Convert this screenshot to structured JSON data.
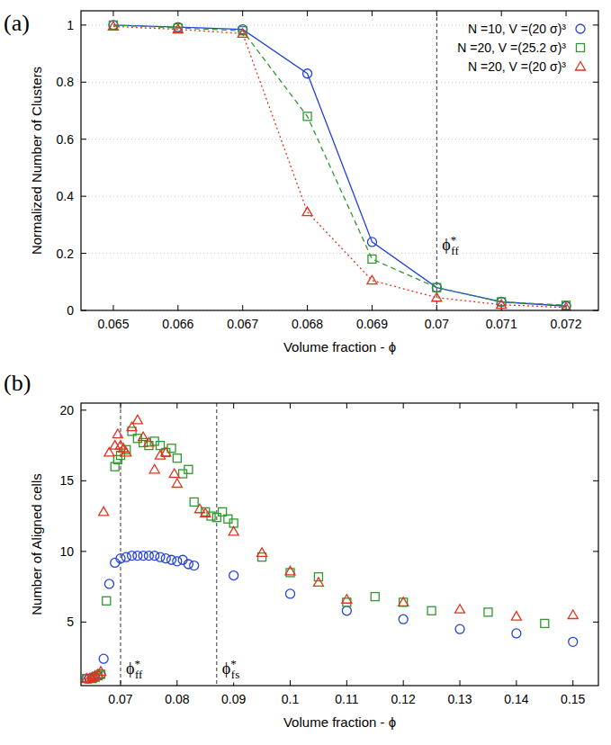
{
  "chart_data": [
    {
      "type": "line",
      "label": "(a)",
      "xlabel": "Volume fraction - ϕ",
      "ylabel": "Normalized Number of Clusters",
      "xlim": [
        0.0645,
        0.0725
      ],
      "xticks": [
        0.065,
        0.066,
        0.067,
        0.068,
        0.069,
        0.07,
        0.071,
        0.072
      ],
      "ylim": [
        0,
        1.05
      ],
      "yticks": [
        0,
        0.2,
        0.4,
        0.6,
        0.8,
        1
      ],
      "grid": true,
      "legend": "top-right",
      "x": [
        0.065,
        0.066,
        0.067,
        0.068,
        0.069,
        0.07,
        0.071,
        0.072
      ],
      "series": [
        {
          "name": "N =10, V =(20 σ)³",
          "color": "#2343d8",
          "marker": "circle",
          "line_style": "solid",
          "values": [
            1.0,
            0.993,
            0.985,
            0.83,
            0.24,
            0.08,
            0.03,
            0.015
          ]
        },
        {
          "name": "N =20, V =(25.2 σ)³",
          "color": "#2e9a2e",
          "marker": "square",
          "line_style": "dashed",
          "values": [
            1.0,
            0.99,
            0.98,
            0.68,
            0.18,
            0.08,
            0.03,
            0.018
          ]
        },
        {
          "name": "N =20, V =(20 σ)³",
          "color": "#e0341e",
          "marker": "triangle",
          "line_style": "dotted",
          "values": [
            0.995,
            0.985,
            0.97,
            0.345,
            0.105,
            0.045,
            0.02,
            0.01
          ]
        }
      ],
      "annotations": [
        {
          "x": 0.07,
          "text": "ϕ",
          "sup": "*",
          "sub": "ff"
        }
      ]
    },
    {
      "type": "scatter",
      "label": "(b)",
      "xlabel": "Volume fraction - ϕ",
      "ylabel": "Number of Aligned cells",
      "xlim": [
        0.063,
        0.1545
      ],
      "xticks": [
        0.07,
        0.08,
        0.09,
        0.1,
        0.11,
        0.12,
        0.13,
        0.14,
        0.15
      ],
      "ylim": [
        0.5,
        20.5
      ],
      "yticks": [
        5,
        10,
        15,
        20
      ],
      "grid": false,
      "series": [
        {
          "color": "#2343d8",
          "marker": "circle",
          "x": [
            0.064,
            0.0645,
            0.065,
            0.0655,
            0.066,
            0.0665,
            0.067,
            0.068,
            0.069,
            0.07,
            0.071,
            0.072,
            0.073,
            0.074,
            0.075,
            0.076,
            0.077,
            0.078,
            0.079,
            0.08,
            0.081,
            0.082,
            0.083,
            0.09,
            0.1,
            0.11,
            0.12,
            0.13,
            0.14,
            0.15
          ],
          "values": [
            1.0,
            1.0,
            1.05,
            1.1,
            1.2,
            1.3,
            2.4,
            7.7,
            9.2,
            9.5,
            9.6,
            9.7,
            9.7,
            9.7,
            9.7,
            9.7,
            9.6,
            9.5,
            9.4,
            9.3,
            9.4,
            9.1,
            9.0,
            8.3,
            7.0,
            5.8,
            5.2,
            4.5,
            4.2,
            3.6
          ]
        },
        {
          "color": "#2e9a2e",
          "marker": "square",
          "x": [
            0.064,
            0.065,
            0.0655,
            0.066,
            0.0665,
            0.0675,
            0.069,
            0.0695,
            0.07,
            0.071,
            0.072,
            0.073,
            0.074,
            0.075,
            0.076,
            0.077,
            0.078,
            0.079,
            0.08,
            0.081,
            0.082,
            0.083,
            0.085,
            0.086,
            0.087,
            0.088,
            0.089,
            0.09,
            0.095,
            0.1,
            0.105,
            0.11,
            0.115,
            0.12,
            0.125,
            0.135,
            0.145
          ],
          "values": [
            1.0,
            1.0,
            1.1,
            1.2,
            1.3,
            6.5,
            16.0,
            16.5,
            16.8,
            17.2,
            18.5,
            18.0,
            17.7,
            17.5,
            17.8,
            17.5,
            17.0,
            17.3,
            16.6,
            15.5,
            15.8,
            13.5,
            12.8,
            12.5,
            12.4,
            12.8,
            12.3,
            12.0,
            9.6,
            8.5,
            8.2,
            6.4,
            6.8,
            6.4,
            5.8,
            5.7,
            4.9
          ]
        },
        {
          "color": "#e0341e",
          "marker": "triangle",
          "x": [
            0.064,
            0.0645,
            0.065,
            0.0655,
            0.066,
            0.0665,
            0.067,
            0.068,
            0.069,
            0.0695,
            0.07,
            0.0705,
            0.071,
            0.072,
            0.073,
            0.074,
            0.075,
            0.076,
            0.077,
            0.078,
            0.0795,
            0.08,
            0.084,
            0.085,
            0.09,
            0.095,
            0.1,
            0.105,
            0.11,
            0.12,
            0.13,
            0.14,
            0.15
          ],
          "values": [
            1.0,
            1.0,
            1.1,
            1.2,
            1.3,
            1.5,
            12.8,
            17.0,
            17.5,
            18.3,
            17.5,
            17.3,
            17.0,
            18.8,
            19.3,
            18.1,
            17.7,
            15.8,
            16.8,
            17.0,
            15.5,
            14.8,
            13.0,
            12.7,
            11.4,
            9.9,
            8.6,
            7.8,
            6.6,
            6.4,
            5.9,
            5.4,
            5.5
          ]
        }
      ],
      "annotations": [
        {
          "x": 0.07,
          "text": "ϕ",
          "sup": "*",
          "sub": "ff"
        },
        {
          "x": 0.087,
          "text": "ϕ",
          "sup": "*",
          "sub": "fs"
        }
      ]
    }
  ]
}
